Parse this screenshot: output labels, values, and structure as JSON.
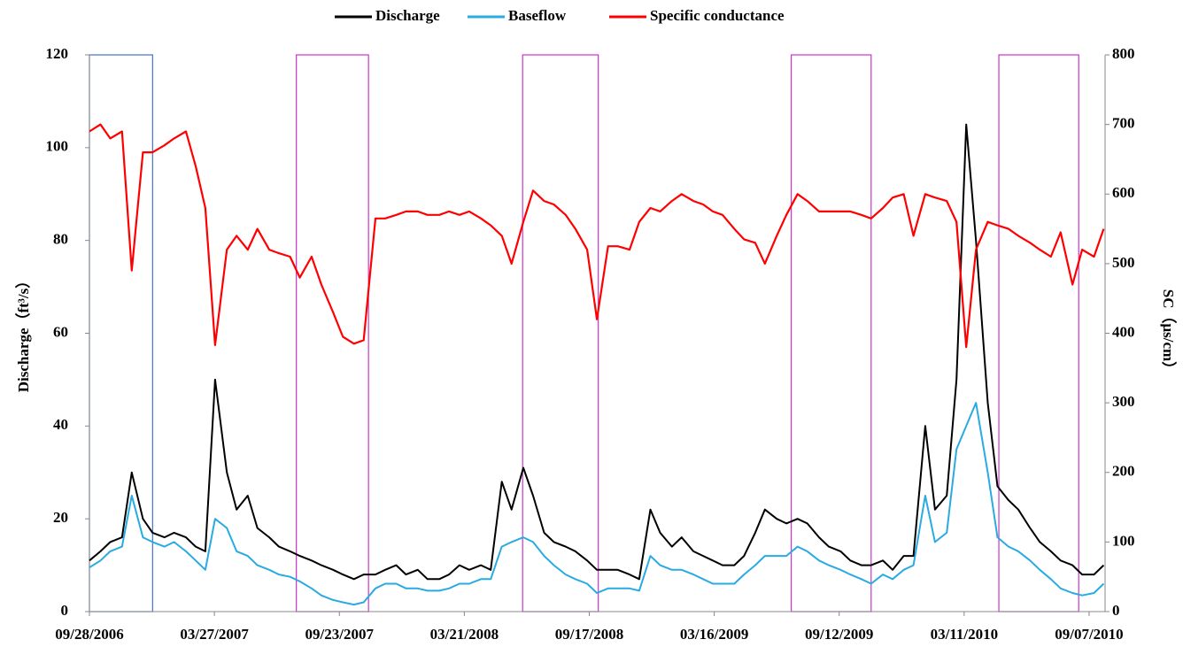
{
  "chart_data": {
    "type": "line",
    "y_label": "Discharge（ft³/s）",
    "y2_label": "SC（μs/cm）",
    "x": [
      "09/28/2006",
      "10/14/2006",
      "10/28/2006",
      "11/14/2006",
      "11/28/2006",
      "12/14/2006",
      "12/28/2006",
      "01/14/2007",
      "01/28/2007",
      "02/14/2007",
      "02/28/2007",
      "03/14/2007",
      "03/28/2007",
      "04/14/2007",
      "04/28/2007",
      "05/14/2007",
      "05/28/2007",
      "06/14/2007",
      "06/28/2007",
      "07/14/2007",
      "07/28/2007",
      "08/14/2007",
      "08/28/2007",
      "09/14/2007",
      "09/28/2007",
      "10/14/2007",
      "10/28/2007",
      "11/14/2007",
      "11/28/2007",
      "12/14/2007",
      "12/28/2007",
      "01/14/2008",
      "01/28/2008",
      "02/14/2008",
      "02/28/2008",
      "03/14/2008",
      "03/28/2008",
      "04/14/2008",
      "04/28/2008",
      "05/14/2008",
      "05/28/2008",
      "06/14/2008",
      "06/28/2008",
      "07/14/2008",
      "07/28/2008",
      "08/14/2008",
      "08/28/2008",
      "09/14/2008",
      "09/28/2008",
      "10/14/2008",
      "10/28/2008",
      "11/14/2008",
      "11/28/2008",
      "12/14/2008",
      "12/28/2008",
      "01/14/2009",
      "01/28/2009",
      "02/14/2009",
      "02/28/2009",
      "03/14/2009",
      "03/28/2009",
      "04/14/2009",
      "04/28/2009",
      "05/14/2009",
      "05/28/2009",
      "06/14/2009",
      "06/28/2009",
      "07/14/2009",
      "07/28/2009",
      "08/14/2009",
      "08/28/2009",
      "09/14/2009",
      "09/28/2009",
      "10/14/2009",
      "10/28/2009",
      "11/14/2009",
      "11/28/2009",
      "12/14/2009",
      "12/28/2009",
      "01/14/2010",
      "01/28/2010",
      "02/14/2010",
      "02/28/2010",
      "03/14/2010",
      "03/28/2010",
      "04/14/2010",
      "04/28/2010",
      "05/14/2010",
      "05/28/2010",
      "06/14/2010",
      "06/28/2010",
      "07/14/2010",
      "07/28/2010",
      "08/14/2010",
      "08/28/2010",
      "09/14/2010",
      "09/28/2010"
    ],
    "series": [
      {
        "name": "Discharge",
        "color": "#000000",
        "values": [
          11,
          13,
          15,
          16,
          30,
          20,
          17,
          16,
          17,
          16,
          14,
          13,
          50,
          30,
          22,
          25,
          18,
          16,
          14,
          13,
          12,
          11,
          10,
          9,
          8,
          7,
          8,
          8,
          9,
          10,
          8,
          9,
          7,
          7,
          8,
          10,
          9,
          10,
          9,
          28,
          22,
          31,
          25,
          17,
          15,
          14,
          13,
          11,
          9,
          9,
          9,
          8,
          7,
          22,
          17,
          14,
          16,
          13,
          12,
          11,
          10,
          10,
          12,
          17,
          22,
          20,
          19,
          20,
          19,
          16,
          14,
          13,
          11,
          10,
          10,
          11,
          9,
          12,
          12,
          40,
          22,
          25,
          50,
          105,
          80,
          45,
          27,
          24,
          22,
          18,
          15,
          13,
          11,
          10,
          8,
          8,
          10
        ]
      },
      {
        "name": "Baseflow",
        "color": "#29abe2",
        "values": [
          9.5,
          11,
          13,
          14,
          25,
          16,
          15,
          14,
          15,
          13,
          11,
          9,
          20,
          18,
          13,
          12,
          10,
          9,
          8,
          7.5,
          6.5,
          5,
          3.5,
          2.5,
          2,
          1.5,
          2,
          5,
          6,
          6,
          5,
          5,
          4.5,
          4.5,
          5,
          6,
          6,
          7,
          7,
          14,
          15,
          16,
          15,
          12,
          10,
          8,
          7,
          6,
          4,
          5,
          5,
          5,
          4.5,
          12,
          10,
          9,
          9,
          8,
          7,
          6,
          6,
          6,
          8,
          10,
          12,
          12,
          12,
          14,
          13,
          11,
          10,
          9,
          8,
          7,
          6,
          8,
          7,
          9,
          10,
          25,
          15,
          17,
          35,
          40,
          45,
          30,
          16,
          14,
          13,
          11,
          9,
          7,
          5,
          4,
          3.5,
          4,
          6
        ]
      },
      {
        "name": "Specific conductance",
        "color": "#ff0000",
        "axis": "y2",
        "values": [
          690,
          700,
          680,
          690,
          490,
          660,
          660,
          670,
          680,
          690,
          640,
          580,
          383,
          520,
          540,
          520,
          550,
          520,
          515,
          510,
          480,
          510,
          470,
          430,
          395,
          385,
          390,
          565,
          565,
          570,
          575,
          575,
          570,
          570,
          575,
          570,
          575,
          565,
          555,
          540,
          500,
          560,
          605,
          590,
          585,
          570,
          550,
          520,
          420,
          525,
          525,
          520,
          560,
          580,
          575,
          590,
          600,
          590,
          585,
          575,
          570,
          550,
          535,
          530,
          500,
          540,
          570,
          600,
          590,
          575,
          575,
          575,
          575,
          570,
          565,
          580,
          595,
          600,
          540,
          600,
          595,
          590,
          560,
          380,
          520,
          560,
          555,
          550,
          540,
          530,
          520,
          510,
          545,
          470,
          520,
          510,
          550
        ]
      }
    ],
    "highlight_periods": [
      {
        "start": "09/28/2006",
        "end": "12/28/2006",
        "color": "#4472c4"
      },
      {
        "start": "07/23/2007",
        "end": "11/04/2007",
        "color": "#cc33cc"
      },
      {
        "start": "06/13/2008",
        "end": "09/30/2008",
        "color": "#cc33cc"
      },
      {
        "start": "07/05/2009",
        "end": "10/28/2009",
        "color": "#cc33cc"
      },
      {
        "start": "04/30/2010",
        "end": "08/23/2010",
        "color": "#cc33cc"
      }
    ],
    "xlim": [
      "09/28/2006",
      "09/30/2010"
    ],
    "xticks": [
      "09/28/2006",
      "03/27/2007",
      "09/23/2007",
      "03/21/2008",
      "09/17/2008",
      "03/16/2009",
      "09/12/2009",
      "03/11/2010",
      "09/07/2010"
    ],
    "ylim": [
      0,
      120
    ],
    "yticks": [
      0,
      20,
      40,
      60,
      80,
      100,
      120
    ],
    "y2lim": [
      0,
      800
    ],
    "y2ticks": [
      0,
      100,
      200,
      300,
      400,
      500,
      600,
      700,
      800
    ],
    "legend": "top"
  }
}
